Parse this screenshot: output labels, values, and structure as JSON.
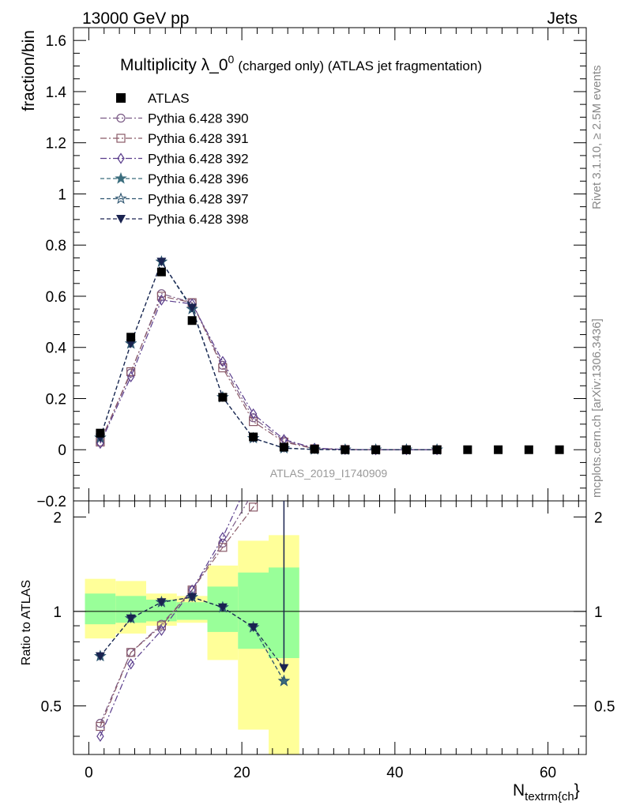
{
  "header": {
    "left": "13000 GeV pp",
    "right": "Jets"
  },
  "side": {
    "rivet": "Rivet 3.1.10, ≥ 2.5M events",
    "mcplots": "mcplots.cern.ch [arXiv:1306.3436]"
  },
  "colors": {
    "atlas": "#000000",
    "p390": "#7a5a85",
    "p391": "#8a5a68",
    "p392": "#5a3d8c",
    "p396": "#3c6e7e",
    "p397": "#2e5570",
    "p398": "#1a2350",
    "band_inner": "#99ff99",
    "band_outer": "#ffff99"
  },
  "chart_data": {
    "type": "scatter",
    "title_main": "Multiplicity λ_0",
    "title_sup": "0",
    "title_tail": "(charged only) (ATLAS jet fragmentation)",
    "watermark": "ATLAS_2019_I1740909",
    "ylabel": "fraction/bin",
    "xlabel_main": "N",
    "xlabel_sub": "textrm{ch",
    "xlabel_end": "}",
    "ratio_ylabel": "Ratio to ATLAS",
    "xlim": [
      -2,
      65
    ],
    "ylim": [
      -0.2,
      1.65
    ],
    "ratio_ylim": [
      0.35,
      2.25
    ],
    "x_ticks": [
      "0",
      "20",
      "40",
      "60"
    ],
    "y_ticks": [
      "−0.2",
      "0",
      "0.2",
      "0.4",
      "0.6",
      "0.8",
      "1",
      "1.2",
      "1.4",
      "1.6"
    ],
    "ratio_ticks": [
      "0.5",
      "1",
      "2"
    ],
    "x": [
      1.5,
      5.5,
      9.5,
      13.5,
      17.5,
      21.5,
      25.5,
      29.5,
      33.5,
      37.5,
      41.5,
      45.5,
      49.5,
      53.5,
      57.5,
      61.5
    ],
    "atlas": [
      0.065,
      0.44,
      0.695,
      0.505,
      0.205,
      0.05,
      0.01,
      0.002,
      0,
      0,
      0,
      0,
      0,
      0,
      0,
      0
    ],
    "series": [
      {
        "name": "Pythia 6.428 390",
        "marker": "circle",
        "dash": "8,3,2,3",
        "color_key": "p390",
        "values": [
          0.03,
          0.3,
          0.61,
          0.575,
          0.33,
          0.125,
          0.035,
          0.005,
          0.001,
          0,
          0,
          0
        ]
      },
      {
        "name": "Pythia 6.428 391",
        "marker": "square",
        "dash": "8,3,2,3",
        "color_key": "p391",
        "values": [
          0.03,
          0.305,
          0.6,
          0.575,
          0.32,
          0.11,
          0.03,
          0.004,
          0.001,
          0,
          0,
          0
        ]
      },
      {
        "name": "Pythia 6.428 392",
        "marker": "diamond",
        "dash": "8,3,2,3",
        "color_key": "p392",
        "values": [
          0.025,
          0.285,
          0.585,
          0.57,
          0.345,
          0.14,
          0.04,
          0.006,
          0.001,
          0,
          0,
          0
        ]
      },
      {
        "name": "Pythia 6.428 396",
        "marker": "star",
        "dash": "5,3",
        "color_key": "p396",
        "values": [
          0.047,
          0.415,
          0.735,
          0.55,
          0.205,
          0.045,
          0.006,
          0.001,
          0,
          0,
          0,
          0
        ]
      },
      {
        "name": "Pythia 6.428 397",
        "marker": "star-open",
        "dash": "5,3",
        "color_key": "p397",
        "values": [
          0.047,
          0.415,
          0.735,
          0.55,
          0.205,
          0.045,
          0.006,
          0.001,
          0,
          0,
          0,
          0
        ]
      },
      {
        "name": "Pythia 6.428 398",
        "marker": "triangle-down",
        "dash": "5,3",
        "color_key": "p398",
        "values": [
          0.047,
          0.415,
          0.735,
          0.555,
          0.205,
          0.045,
          0.007,
          0.001,
          0,
          0,
          0,
          0
        ]
      }
    ],
    "ratio_series": [
      {
        "name": "Pythia 6.428 390",
        "values": [
          0.44,
          0.74,
          0.91,
          1.17,
          1.65,
          2.4,
          3.2
        ]
      },
      {
        "name": "Pythia 6.428 391",
        "values": [
          0.43,
          0.74,
          0.9,
          1.17,
          1.6,
          2.15,
          3.0
        ]
      },
      {
        "name": "Pythia 6.428 392",
        "values": [
          0.4,
          0.68,
          0.87,
          1.17,
          1.72,
          2.8,
          4.0
        ]
      },
      {
        "name": "Pythia 6.428 396",
        "values": [
          0.72,
          0.95,
          1.07,
          1.11,
          1.03,
          0.89,
          0.6
        ]
      },
      {
        "name": "Pythia 6.428 397",
        "values": [
          0.72,
          0.95,
          1.07,
          1.11,
          1.03,
          0.89,
          0.6
        ]
      },
      {
        "name": "Pythia 6.428 398",
        "values": [
          0.72,
          0.95,
          1.07,
          1.11,
          1.03,
          0.89,
          0.66
        ]
      }
    ],
    "ratio_spike": {
      "x": 25.5,
      "from": 2.25,
      "to": 0.66
    },
    "bands": [
      {
        "x0": -0.5,
        "x1": 3.5,
        "in_lo": 0.91,
        "in_hi": 1.14,
        "out_lo": 0.82,
        "out_hi": 1.27
      },
      {
        "x0": 3.5,
        "x1": 7.5,
        "in_lo": 0.92,
        "in_hi": 1.12,
        "out_lo": 0.85,
        "out_hi": 1.25
      },
      {
        "x0": 7.5,
        "x1": 11.5,
        "in_lo": 0.93,
        "in_hi": 1.09,
        "out_lo": 0.9,
        "out_hi": 1.14
      },
      {
        "x0": 11.5,
        "x1": 15.5,
        "in_lo": 0.94,
        "in_hi": 1.07,
        "out_lo": 0.92,
        "out_hi": 1.12
      },
      {
        "x0": 15.5,
        "x1": 19.5,
        "in_lo": 0.86,
        "in_hi": 1.2,
        "out_lo": 0.7,
        "out_hi": 1.4
      },
      {
        "x0": 19.5,
        "x1": 23.5,
        "in_lo": 0.76,
        "in_hi": 1.33,
        "out_lo": 0.42,
        "out_hi": 1.68
      },
      {
        "x0": 23.5,
        "x1": 27.5,
        "in_lo": 0.71,
        "in_hi": 1.38,
        "out_lo": 0.33,
        "out_hi": 1.75
      }
    ]
  }
}
